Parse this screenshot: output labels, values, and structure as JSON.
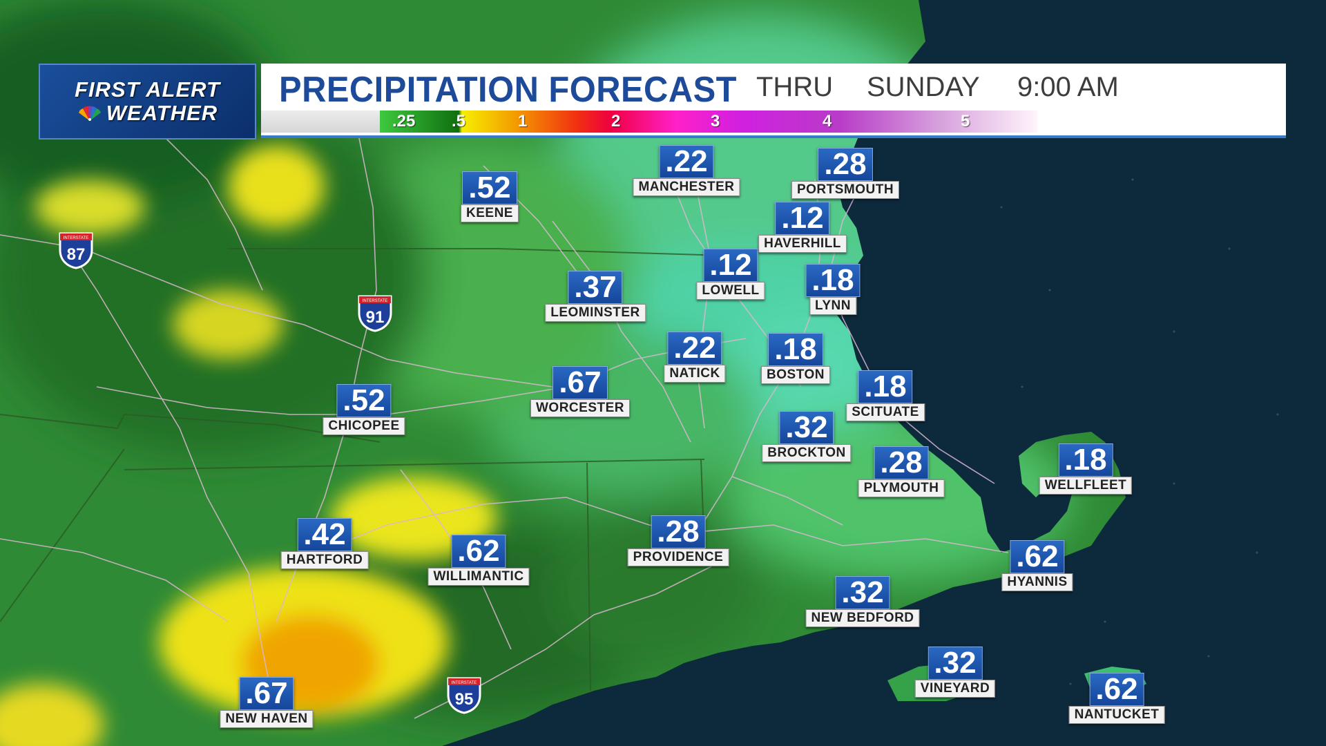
{
  "logo": {
    "line1": "FIRST ALERT",
    "line2": "WEATHER"
  },
  "header": {
    "title": "PRECIPITATION FORECAST",
    "thru": "THRU",
    "day": "SUNDAY",
    "time": "9:00 AM"
  },
  "legend": {
    "labels": [
      ".25",
      ".5",
      "1",
      "2",
      "3",
      "4",
      "5"
    ]
  },
  "cities": [
    {
      "name": "MANCHESTER",
      "value": ".22"
    },
    {
      "name": "PORTSMOUTH",
      "value": ".28"
    },
    {
      "name": "KEENE",
      "value": ".52"
    },
    {
      "name": "HAVERHILL",
      "value": ".12"
    },
    {
      "name": "LOWELL",
      "value": ".12"
    },
    {
      "name": "LYNN",
      "value": ".18"
    },
    {
      "name": "LEOMINSTER",
      "value": ".37"
    },
    {
      "name": "NATICK",
      "value": ".22"
    },
    {
      "name": "BOSTON",
      "value": ".18"
    },
    {
      "name": "WORCESTER",
      "value": ".67"
    },
    {
      "name": "SCITUATE",
      "value": ".18"
    },
    {
      "name": "CHICOPEE",
      "value": ".52"
    },
    {
      "name": "BROCKTON",
      "value": ".32"
    },
    {
      "name": "PLYMOUTH",
      "value": ".28"
    },
    {
      "name": "WELLFLEET",
      "value": ".18"
    },
    {
      "name": "HARTFORD",
      "value": ".42"
    },
    {
      "name": "WILLIMANTIC",
      "value": ".62"
    },
    {
      "name": "PROVIDENCE",
      "value": ".28"
    },
    {
      "name": "HYANNIS",
      "value": ".62"
    },
    {
      "name": "NEW BEDFORD",
      "value": ".32"
    },
    {
      "name": "VINEYARD",
      "value": ".32"
    },
    {
      "name": "NANTUCKET",
      "value": ".62"
    },
    {
      "name": "NEW HAVEN",
      "value": ".67"
    }
  ],
  "interstates": [
    {
      "number": "87",
      "label": "INTERSTATE"
    },
    {
      "number": "91",
      "label": "INTERSTATE"
    },
    {
      "number": "95",
      "label": "INTERSTATE"
    }
  ],
  "colors": {
    "ocean": "#0d2a3d",
    "land_green": "#3f9a3c",
    "dark_green": "#1f6a25",
    "yellow": "#e9e01c",
    "orange": "#f0a400",
    "teal": "#2fd0a8",
    "label_blue": "#1d4b9a"
  }
}
